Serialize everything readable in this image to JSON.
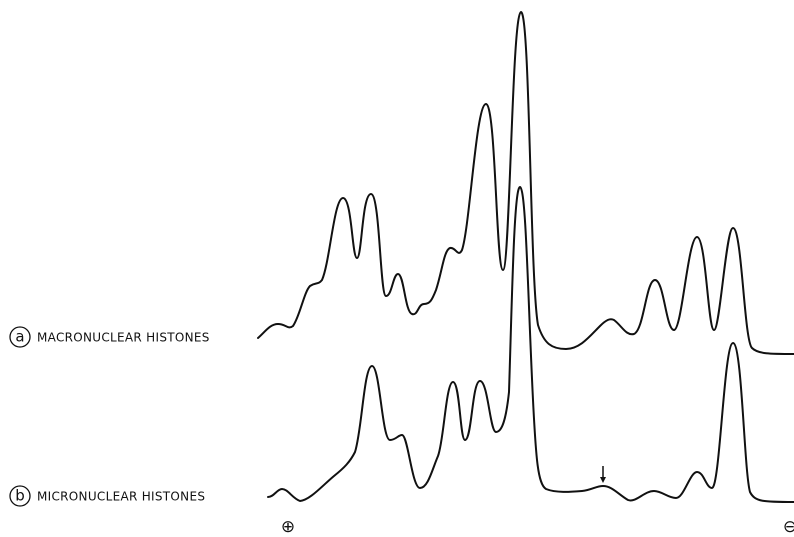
{
  "traces": [
    {
      "letter": "a",
      "label": "MACRONUCLEAR HISTONES"
    },
    {
      "letter": "b",
      "label": "MICRONUCLEAR HISTONES"
    }
  ],
  "poles": {
    "anode": "⊕",
    "cathode": "⊖"
  }
}
